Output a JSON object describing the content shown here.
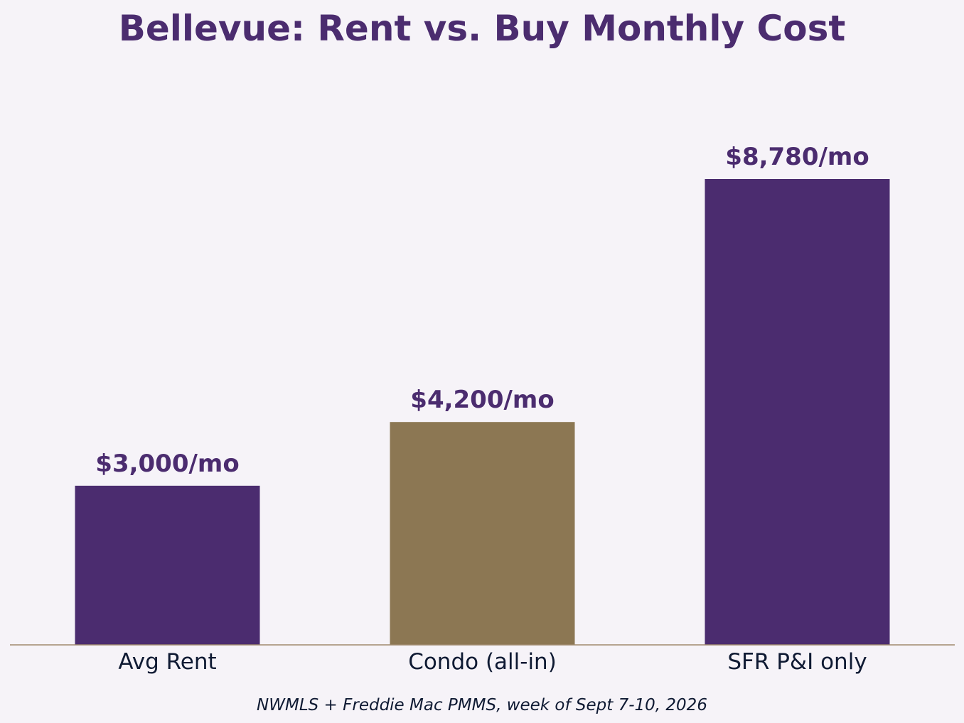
{
  "chart_data": {
    "type": "bar",
    "title": "Bellevue: Rent vs. Buy Monthly Cost",
    "xlabel": "",
    "ylabel": "",
    "categories": [
      "Avg Rent",
      "Condo (all-in)",
      "SFR P&I only"
    ],
    "values": [
      3000,
      4200,
      8780
    ],
    "data_labels": [
      "$3,000/mo",
      "$4,200/mo",
      "$8,780/mo"
    ],
    "bar_colors": [
      "#4b2c6f",
      "#8c7753",
      "#4b2c6f"
    ],
    "ylim": [
      0,
      10000
    ],
    "grid": false,
    "legend": "none",
    "source": "NWMLS + Freddie Mac PMMS, week of Sept 7-10, 2026"
  },
  "colors": {
    "title": "#4b2c6f",
    "data_label": "#4b2c6f",
    "tick_label": "#0f1a33",
    "source": "#0f1a33",
    "axis_line": "#a08a6e",
    "background": "#f6f3f8"
  }
}
